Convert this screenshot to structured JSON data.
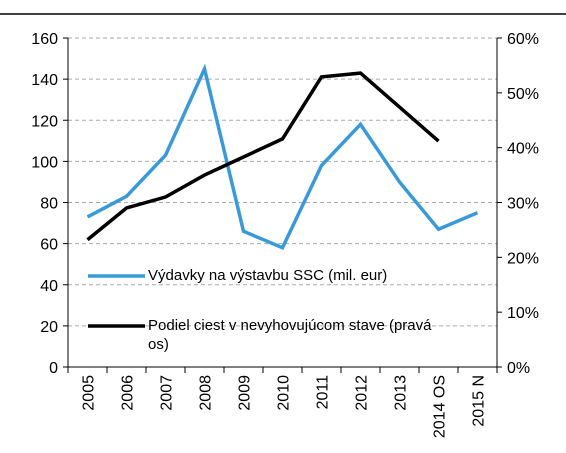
{
  "chart_data": {
    "type": "line",
    "categories": [
      "2005",
      "2006",
      "2007",
      "2008",
      "2009",
      "2010",
      "2011",
      "2012",
      "2013",
      "2014 OS",
      "2015 N"
    ],
    "series": [
      {
        "name": "Výdavky na výstavbu SSC (mil. eur)",
        "color": "#3a9ad9",
        "values": [
          73,
          83,
          103,
          145,
          66,
          58,
          98,
          118,
          90,
          67,
          75
        ]
      },
      {
        "name": "Podiel ciest v nevyhovujúcom stave (pravá os)",
        "color": "#000000",
        "axis": "y2",
        "values": [
          23.2,
          29,
          31,
          35,
          38.3,
          41.6,
          52.9,
          53.6,
          47.4,
          41.2,
          null
        ]
      }
    ],
    "ylim": [
      0,
      160
    ],
    "yticks": [
      0,
      20,
      40,
      60,
      80,
      100,
      120,
      140,
      160
    ],
    "y2lim": [
      0,
      60
    ],
    "y2ticks": [
      {
        "value": 0,
        "label": "0%"
      },
      {
        "value": 10,
        "label": "10%"
      },
      {
        "value": 20,
        "label": "20%"
      },
      {
        "value": 30,
        "label": "30%"
      },
      {
        "value": 40,
        "label": "40%"
      },
      {
        "value": 50,
        "label": "50%"
      },
      {
        "value": 60,
        "label": "60%"
      }
    ],
    "grid": true
  }
}
